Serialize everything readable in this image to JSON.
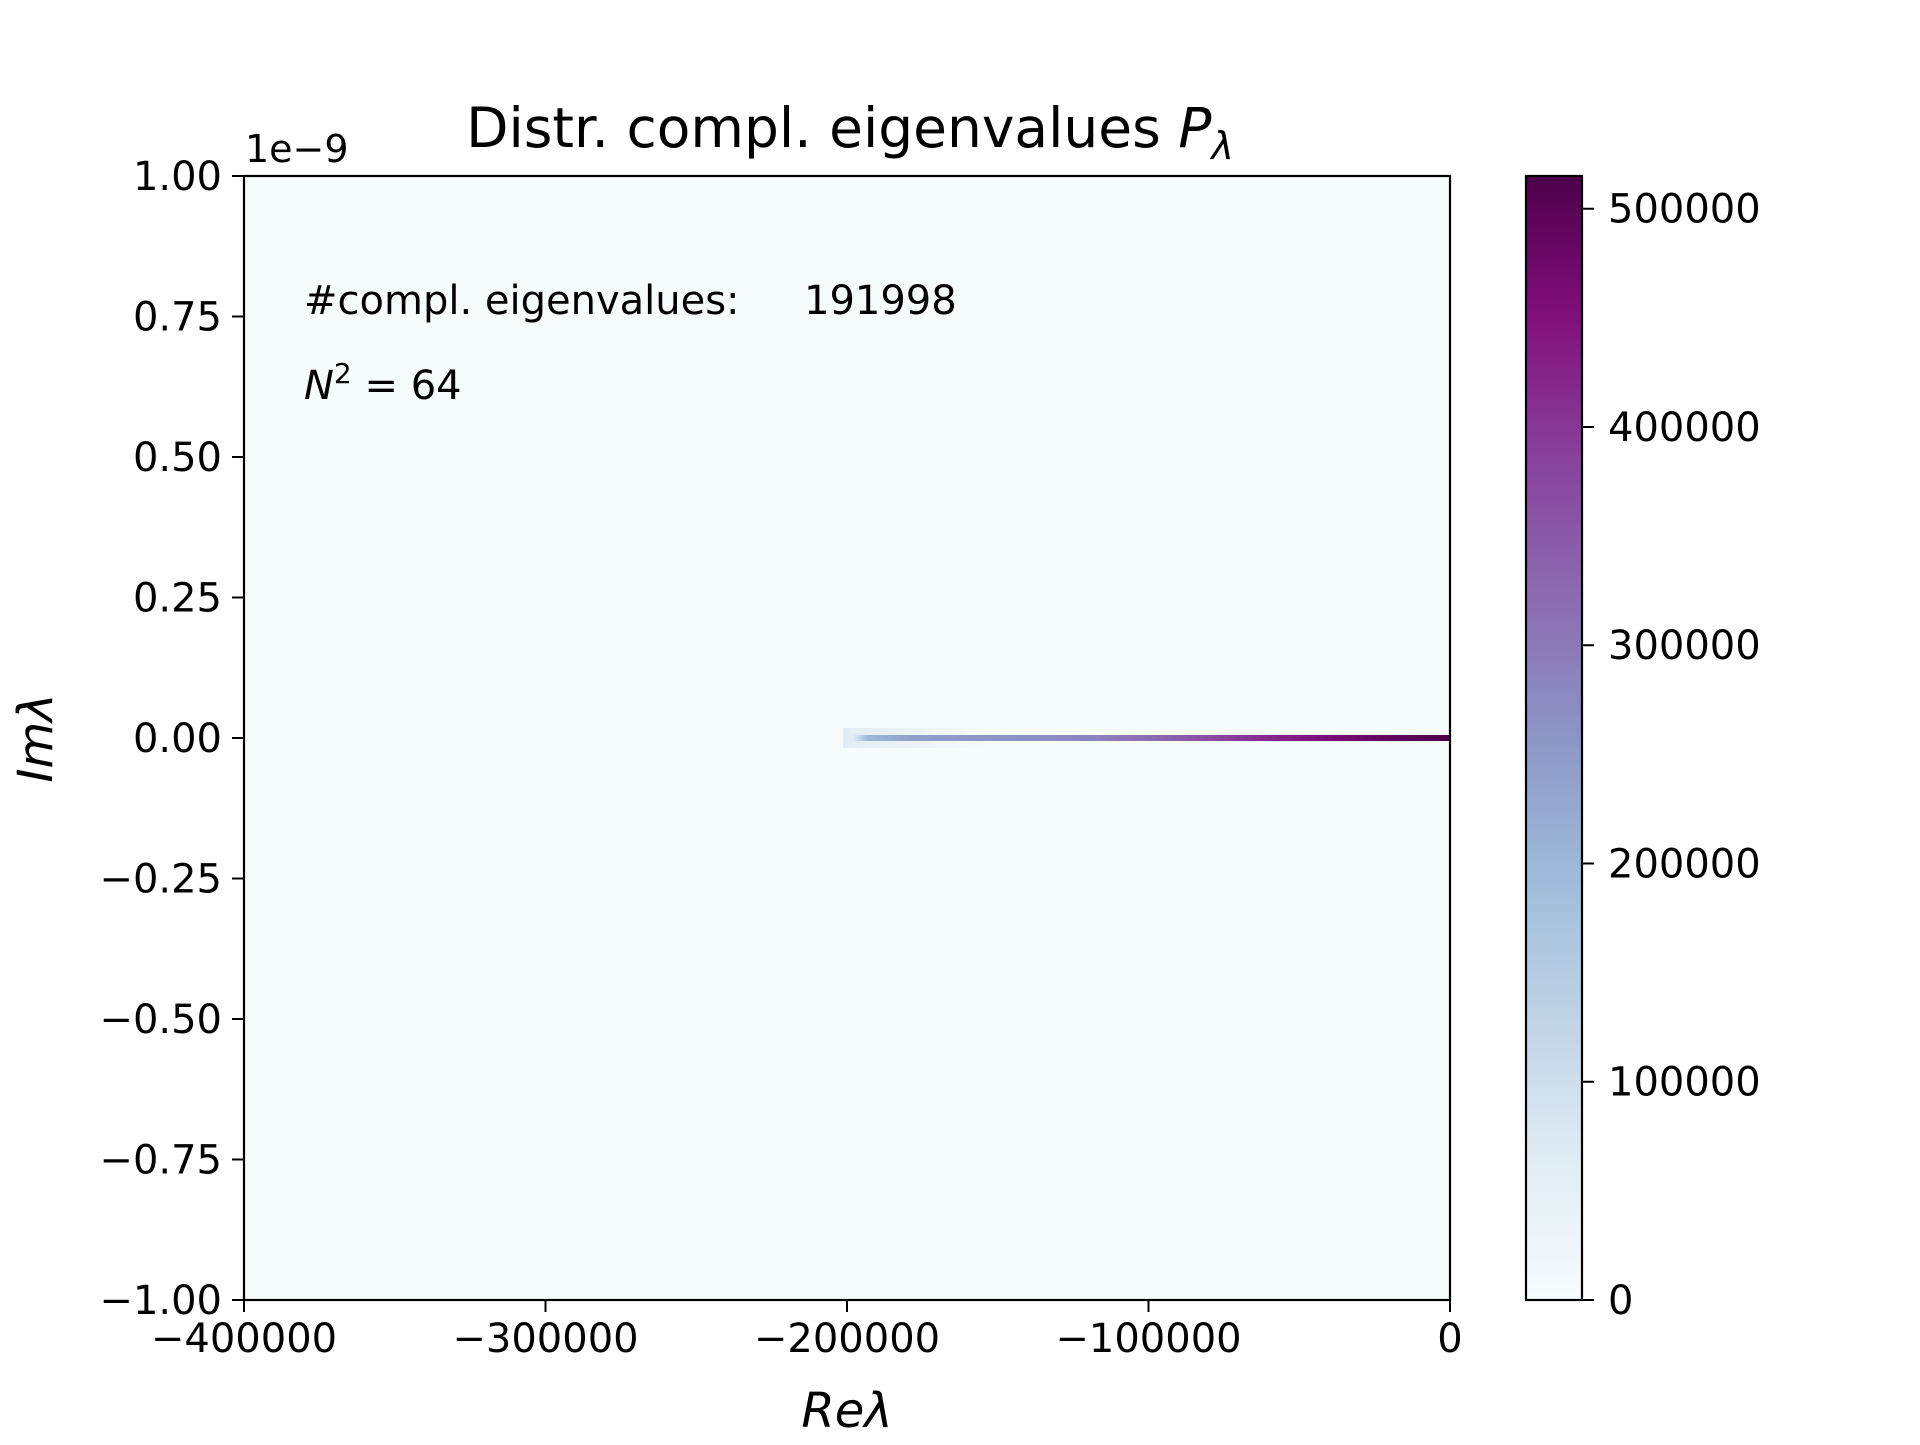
{
  "chart_data": {
    "type": "heatmap",
    "title": {
      "text": "Distr. compl. eigenvalues ",
      "symbol": "P",
      "subscript": "λ"
    },
    "xlabel": "Reλ",
    "ylabel": "Imλ",
    "y_offset_label": "1e−9",
    "xlim": [
      -400000,
      0
    ],
    "ylim": [
      -1.0,
      1.0
    ],
    "x_scale": "linear",
    "y_scale": "linear",
    "x_ticks": [
      {
        "value": -400000,
        "label": "−400000"
      },
      {
        "value": -300000,
        "label": "−300000"
      },
      {
        "value": -200000,
        "label": "−200000"
      },
      {
        "value": -100000,
        "label": "−100000"
      },
      {
        "value": 0,
        "label": "0"
      }
    ],
    "y_ticks": [
      {
        "value": 1.0,
        "label": "1.00"
      },
      {
        "value": 0.75,
        "label": "0.75"
      },
      {
        "value": 0.5,
        "label": "0.50"
      },
      {
        "value": 0.25,
        "label": "0.25"
      },
      {
        "value": 0.0,
        "label": "0.00"
      },
      {
        "value": -0.25,
        "label": "−0.25"
      },
      {
        "value": -0.5,
        "label": "−0.50"
      },
      {
        "value": -0.75,
        "label": "−0.75"
      },
      {
        "value": -1.0,
        "label": "−1.00"
      }
    ],
    "annotations": {
      "count_label": "#compl. eigenvalues:",
      "count_value": "191998",
      "n_symbol": "N",
      "n_exponent": "2",
      "n_rest": " = 64"
    },
    "grid": false,
    "background_color": "#f6fbfc",
    "band": {
      "y": 0.0,
      "x_start": -200000,
      "x_end": 0,
      "density": [
        {
          "x": -200000,
          "value": 60000
        },
        {
          "x": -195000,
          "value": 200000
        },
        {
          "x": -180000,
          "value": 240000
        },
        {
          "x": -160000,
          "value": 255000
        },
        {
          "x": -140000,
          "value": 265000
        },
        {
          "x": -120000,
          "value": 285000
        },
        {
          "x": -100000,
          "value": 320000
        },
        {
          "x": -80000,
          "value": 370000
        },
        {
          "x": -60000,
          "value": 420000
        },
        {
          "x": -40000,
          "value": 460000
        },
        {
          "x": -20000,
          "value": 495000
        },
        {
          "x": 0,
          "value": 515000
        }
      ]
    },
    "colorbar": {
      "colormap": "BuPu",
      "min": 0,
      "max": 515000,
      "colors": [
        "#f7fcfd",
        "#e0ecf4",
        "#bfd3e6",
        "#9ebcda",
        "#8c96c6",
        "#8c6bb1",
        "#88419d",
        "#810f7c",
        "#4d004b"
      ],
      "ticks": [
        {
          "value": 0,
          "label": "0"
        },
        {
          "value": 100000,
          "label": "100000"
        },
        {
          "value": 200000,
          "label": "200000"
        },
        {
          "value": 300000,
          "label": "300000"
        },
        {
          "value": 400000,
          "label": "400000"
        },
        {
          "value": 500000,
          "label": "500000"
        }
      ]
    }
  }
}
